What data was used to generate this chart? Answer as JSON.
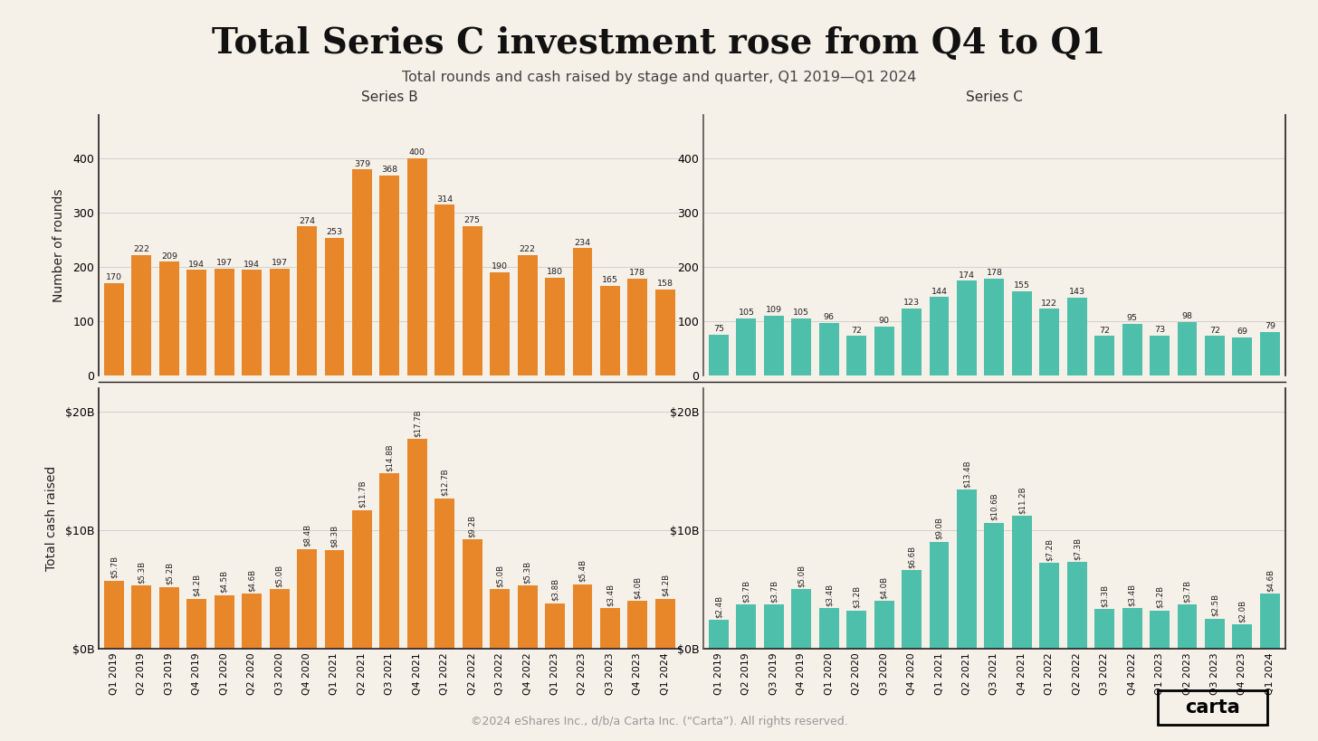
{
  "title": "Total Series C investment rose from Q4 to Q1",
  "subtitle": "Total rounds and cash raised by stage and quarter, Q1 2019—Q1 2024",
  "footer": "©2024 eShares Inc., d/b/a Carta Inc. (“Carta”). All rights reserved.",
  "background_color": "#f5f0e8",
  "series_b_color": "#e8872a",
  "series_c_color": "#4dbfaa",
  "series_b_quarters": [
    "Q1 2019",
    "Q2 2019",
    "Q3 2019",
    "Q4 2019",
    "Q1 2020",
    "Q2 2020",
    "Q3 2020",
    "Q4 2020",
    "Q1 2021",
    "Q2 2021",
    "Q3 2021",
    "Q4 2021",
    "Q1 2022",
    "Q2 2022",
    "Q3 2022",
    "Q4 2022",
    "Q1 2023",
    "Q2 2023",
    "Q3 2023",
    "Q4 2023",
    "Q1 2024"
  ],
  "series_b_rounds": [
    170,
    222,
    209,
    194,
    197,
    194,
    197,
    274,
    253,
    379,
    368,
    400,
    314,
    275,
    190,
    222,
    180,
    234,
    165,
    178,
    158
  ],
  "series_b_cash": [
    5.7,
    5.3,
    5.2,
    4.2,
    4.5,
    4.6,
    5.0,
    8.4,
    8.3,
    11.7,
    14.8,
    17.7,
    12.7,
    9.2,
    5.0,
    5.3,
    3.8,
    5.4,
    3.4,
    4.0,
    4.2
  ],
  "series_b_cash_labels": [
    "$5.7B",
    "$5.3B",
    "$5.2B",
    "$4.2B",
    "$4.5B",
    "$4.6B",
    "$5.0B",
    "$8.4B",
    "$8.3B",
    "$11.7B",
    "$14.8B",
    "$17.7B",
    "$12.7B",
    "$9.2B",
    "$5.0B",
    "$5.3B",
    "$3.8B",
    "$5.4B",
    "$3.4B",
    "$4.0B",
    "$4.2B"
  ],
  "series_c_quarters": [
    "Q1 2019",
    "Q2 2019",
    "Q3 2019",
    "Q4 2019",
    "Q1 2020",
    "Q2 2020",
    "Q3 2020",
    "Q4 2020",
    "Q1 2021",
    "Q2 2021",
    "Q3 2021",
    "Q4 2021",
    "Q1 2022",
    "Q2 2022",
    "Q3 2022",
    "Q4 2022",
    "Q1 2023",
    "Q2 2023",
    "Q3 2023",
    "Q4 2023",
    "Q1 2024"
  ],
  "series_c_rounds": [
    75,
    105,
    109,
    105,
    96,
    72,
    90,
    123,
    144,
    174,
    178,
    155,
    122,
    143,
    72,
    95,
    73,
    98,
    72,
    69,
    79
  ],
  "series_c_cash": [
    2.4,
    3.7,
    3.7,
    5.0,
    3.4,
    3.2,
    4.0,
    6.6,
    9.0,
    13.4,
    10.6,
    11.2,
    7.2,
    7.3,
    3.3,
    3.4,
    3.2,
    3.7,
    2.5,
    2.0,
    4.6
  ],
  "series_c_cash_labels": [
    "$2.4B",
    "$3.7B",
    "$3.7B",
    "$5.0B",
    "$3.4B",
    "$3.2B",
    "$4.0B",
    "$6.6B",
    "$9.0B",
    "$13.4B",
    "$10.6B",
    "$11.2B",
    "$7.2B",
    "$7.3B",
    "$3.3B",
    "$3.4B",
    "$3.2B",
    "$3.7B",
    "$2.5B",
    "$2.0B",
    "$4.6B"
  ],
  "rounds_ylim": [
    0,
    480
  ],
  "cash_ylim": [
    0,
    22
  ],
  "rounds_yticks": [
    0,
    100,
    200,
    300,
    400
  ],
  "cash_yticks_labels": [
    "$0B",
    "$10B",
    "$20B"
  ],
  "cash_yticks_vals": [
    0,
    10,
    20
  ]
}
